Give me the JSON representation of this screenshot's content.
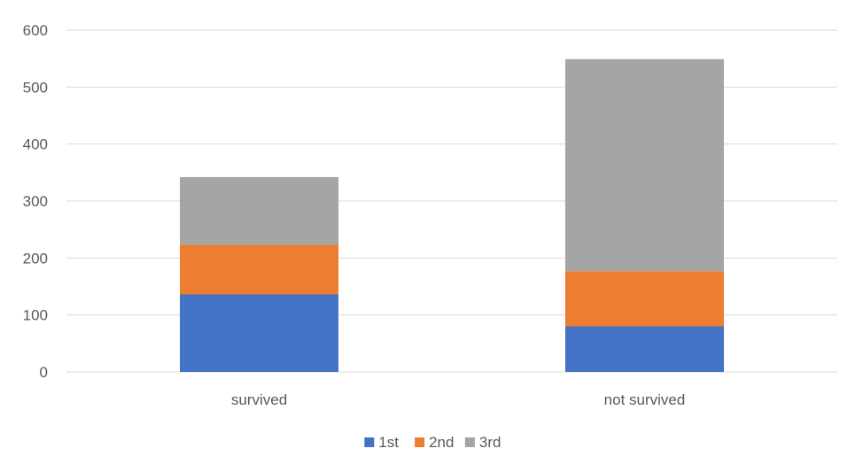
{
  "chart_data": {
    "type": "bar",
    "stacked": true,
    "categories": [
      "survived",
      "not survived"
    ],
    "series": [
      {
        "name": "1st",
        "values": [
          136,
          80
        ],
        "color": "#4472C4"
      },
      {
        "name": "2nd",
        "values": [
          87,
          97
        ],
        "color": "#ED7D31"
      },
      {
        "name": "3rd",
        "values": [
          119,
          372
        ],
        "color": "#A5A5A5"
      }
    ],
    "ylim": [
      0,
      600
    ],
    "yticks": [
      "0",
      "100",
      "200",
      "300",
      "400",
      "500",
      "600"
    ],
    "grid": true,
    "legend": "bottom-center",
    "gridline_color": "#D9D9D9",
    "axis_label_color": "#595959"
  }
}
